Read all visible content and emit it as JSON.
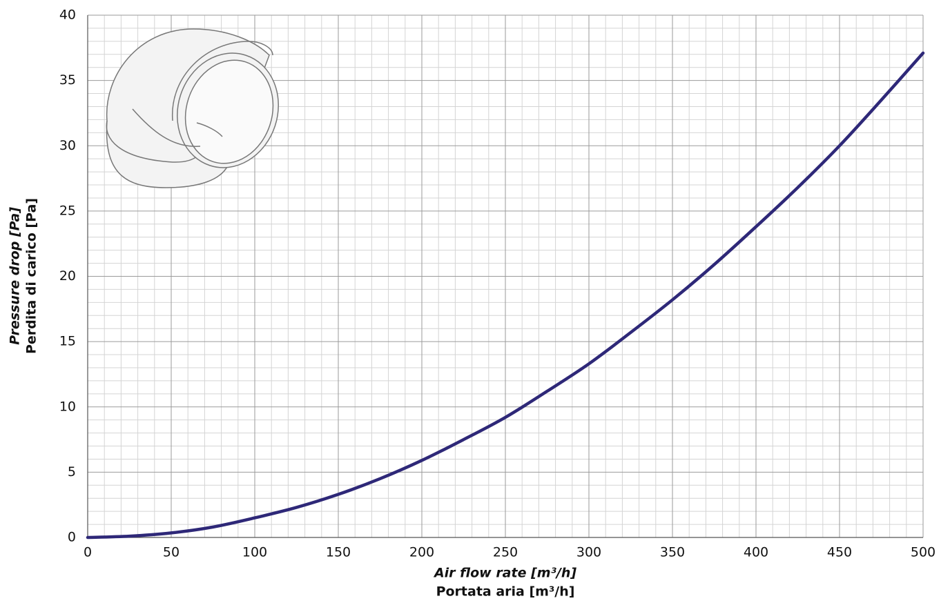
{
  "chart_data": {
    "type": "line",
    "xlabel": [
      "Air flow rate [m³/h]",
      "Portata aria [m³/h]"
    ],
    "ylabel": [
      "Pressure drop [Pa]",
      "Perdita di carico [Pa]"
    ],
    "x": [
      0,
      25,
      50,
      75,
      100,
      125,
      150,
      175,
      200,
      225,
      250,
      275,
      300,
      325,
      350,
      375,
      400,
      425,
      450,
      475,
      500
    ],
    "series": [
      {
        "color": "#2e2878",
        "values": [
          0,
          0.1,
          0.35,
          0.8,
          1.5,
          2.3,
          3.3,
          4.5,
          5.9,
          7.5,
          9.2,
          11.2,
          13.3,
          15.7,
          18.2,
          20.9,
          23.8,
          26.8,
          30.0,
          33.5,
          37.1
        ]
      }
    ],
    "xlim": [
      0,
      500
    ],
    "xticks": [
      0,
      50,
      100,
      150,
      200,
      250,
      300,
      350,
      400,
      450,
      500
    ],
    "ylim": [
      0,
      40
    ],
    "yticks": [
      0,
      5,
      10,
      15,
      20,
      25,
      30,
      35,
      40
    ],
    "grid": true,
    "minor_divisions": 5
  }
}
